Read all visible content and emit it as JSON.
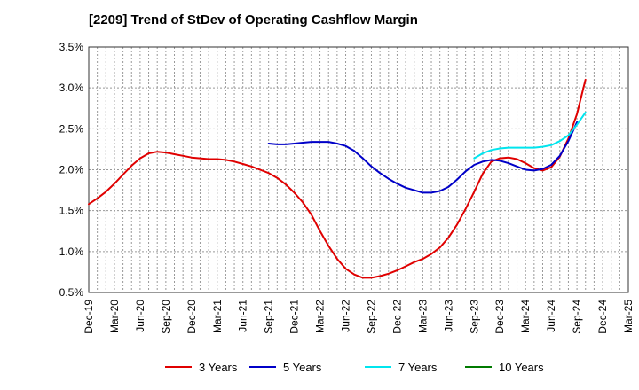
{
  "chart_data": {
    "type": "line",
    "title": "[2209]  Trend of StDev of Operating Cashflow Margin",
    "xlabel": "",
    "ylabel": "",
    "ylim": [
      0.5,
      3.5
    ],
    "y_ticks": [
      "3.5%",
      "3.0%",
      "2.5%",
      "2.0%",
      "1.5%",
      "1.0%",
      "0.5%"
    ],
    "y_tick_values": [
      3.5,
      3.0,
      2.5,
      2.0,
      1.5,
      1.0,
      0.5
    ],
    "x_ticks": [
      "Dec-19",
      "Mar-20",
      "Jun-20",
      "Sep-20",
      "Dec-20",
      "Mar-21",
      "Jun-21",
      "Sep-21",
      "Dec-21",
      "Mar-22",
      "Jun-22",
      "Sep-22",
      "Dec-22",
      "Mar-23",
      "Jun-23",
      "Sep-23",
      "Dec-23",
      "Mar-24",
      "Jun-24",
      "Sep-24",
      "Dec-24",
      "Mar-25"
    ],
    "grid": true,
    "legend_position": "bottom",
    "series": [
      {
        "name": "3 Years",
        "color": "#e00000",
        "points": [
          [
            "Dec-19",
            1.58
          ],
          [
            "Jan-20",
            1.65
          ],
          [
            "Feb-20",
            1.73
          ],
          [
            "Mar-20",
            1.83
          ],
          [
            "Apr-20",
            1.94
          ],
          [
            "May-20",
            2.05
          ],
          [
            "Jun-20",
            2.14
          ],
          [
            "Jul-20",
            2.2
          ],
          [
            "Aug-20",
            2.22
          ],
          [
            "Sep-20",
            2.21
          ],
          [
            "Oct-20",
            2.19
          ],
          [
            "Nov-20",
            2.17
          ],
          [
            "Dec-20",
            2.15
          ],
          [
            "Jan-21",
            2.14
          ],
          [
            "Feb-21",
            2.13
          ],
          [
            "Mar-21",
            2.13
          ],
          [
            "Apr-21",
            2.12
          ],
          [
            "May-21",
            2.1
          ],
          [
            "Jun-21",
            2.07
          ],
          [
            "Jul-21",
            2.04
          ],
          [
            "Aug-21",
            2.0
          ],
          [
            "Sep-21",
            1.96
          ],
          [
            "Oct-21",
            1.9
          ],
          [
            "Nov-21",
            1.82
          ],
          [
            "Dec-21",
            1.72
          ],
          [
            "Jan-22",
            1.6
          ],
          [
            "Feb-22",
            1.45
          ],
          [
            "Mar-22",
            1.25
          ],
          [
            "Apr-22",
            1.07
          ],
          [
            "May-22",
            0.91
          ],
          [
            "Jun-22",
            0.79
          ],
          [
            "Jul-22",
            0.72
          ],
          [
            "Aug-22",
            0.68
          ],
          [
            "Sep-22",
            0.68
          ],
          [
            "Oct-22",
            0.7
          ],
          [
            "Nov-22",
            0.73
          ],
          [
            "Dec-22",
            0.77
          ],
          [
            "Jan-23",
            0.82
          ],
          [
            "Feb-23",
            0.87
          ],
          [
            "Mar-23",
            0.91
          ],
          [
            "Apr-23",
            0.97
          ],
          [
            "May-23",
            1.05
          ],
          [
            "Jun-23",
            1.17
          ],
          [
            "Jul-23",
            1.33
          ],
          [
            "Aug-23",
            1.52
          ],
          [
            "Sep-23",
            1.73
          ],
          [
            "Oct-23",
            1.95
          ],
          [
            "Nov-23",
            2.1
          ],
          [
            "Dec-23",
            2.14
          ],
          [
            "Jan-24",
            2.15
          ],
          [
            "Feb-24",
            2.13
          ],
          [
            "Mar-24",
            2.08
          ],
          [
            "Apr-24",
            2.02
          ],
          [
            "May-24",
            1.99
          ],
          [
            "Jun-24",
            2.03
          ],
          [
            "Jul-24",
            2.16
          ],
          [
            "Aug-24",
            2.38
          ],
          [
            "Sep-24",
            2.68
          ],
          [
            "Oct-24",
            3.1
          ]
        ]
      },
      {
        "name": "5 Years",
        "color": "#0000c8",
        "points": [
          [
            "Sep-21",
            2.32
          ],
          [
            "Oct-21",
            2.31
          ],
          [
            "Nov-21",
            2.31
          ],
          [
            "Dec-21",
            2.32
          ],
          [
            "Jan-22",
            2.33
          ],
          [
            "Feb-22",
            2.34
          ],
          [
            "Mar-22",
            2.34
          ],
          [
            "Apr-22",
            2.34
          ],
          [
            "May-22",
            2.32
          ],
          [
            "Jun-22",
            2.29
          ],
          [
            "Jul-22",
            2.23
          ],
          [
            "Aug-22",
            2.14
          ],
          [
            "Sep-22",
            2.04
          ],
          [
            "Oct-22",
            1.96
          ],
          [
            "Nov-22",
            1.89
          ],
          [
            "Dec-22",
            1.83
          ],
          [
            "Jan-23",
            1.78
          ],
          [
            "Feb-23",
            1.75
          ],
          [
            "Mar-23",
            1.72
          ],
          [
            "Apr-23",
            1.72
          ],
          [
            "May-23",
            1.74
          ],
          [
            "Jun-23",
            1.79
          ],
          [
            "Jul-23",
            1.88
          ],
          [
            "Aug-23",
            1.98
          ],
          [
            "Sep-23",
            2.06
          ],
          [
            "Oct-23",
            2.1
          ],
          [
            "Nov-23",
            2.12
          ],
          [
            "Dec-23",
            2.11
          ],
          [
            "Jan-24",
            2.08
          ],
          [
            "Feb-24",
            2.04
          ],
          [
            "Mar-24",
            2.0
          ],
          [
            "Apr-24",
            1.99
          ],
          [
            "May-24",
            2.01
          ],
          [
            "Jun-24",
            2.06
          ],
          [
            "Jul-24",
            2.17
          ],
          [
            "Aug-24",
            2.35
          ],
          [
            "Sep-24",
            2.58
          ]
        ]
      },
      {
        "name": "7 Years",
        "color": "#00e5ee",
        "points": [
          [
            "Sep-23",
            2.14
          ],
          [
            "Oct-23",
            2.2
          ],
          [
            "Nov-23",
            2.24
          ],
          [
            "Dec-23",
            2.26
          ],
          [
            "Jan-24",
            2.27
          ],
          [
            "Feb-24",
            2.27
          ],
          [
            "Mar-24",
            2.27
          ],
          [
            "Apr-24",
            2.27
          ],
          [
            "May-24",
            2.28
          ],
          [
            "Jun-24",
            2.3
          ],
          [
            "Jul-24",
            2.35
          ],
          [
            "Aug-24",
            2.42
          ],
          [
            "Sep-24",
            2.55
          ],
          [
            "Oct-24",
            2.7
          ]
        ]
      },
      {
        "name": "10 Years",
        "color": "#007a00",
        "points": []
      }
    ]
  }
}
